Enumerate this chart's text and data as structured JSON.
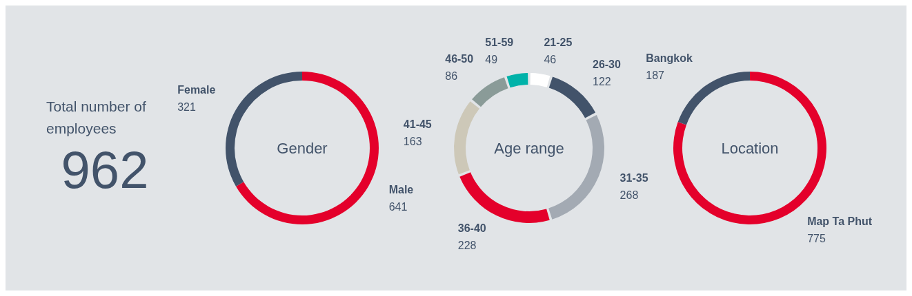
{
  "chart_data": [
    {
      "type": "other",
      "title": "Total number of employees",
      "annotations": [
        "962"
      ]
    },
    {
      "type": "donut",
      "title": "Gender",
      "categories": [
        "Male",
        "Female"
      ],
      "values": [
        641,
        321
      ],
      "colors": [
        "#e4002b",
        "#42536a"
      ],
      "data_labels": true
    },
    {
      "type": "donut",
      "title": "Age range",
      "categories": [
        "21-25",
        "26-30",
        "31-35",
        "36-40",
        "41-45",
        "46-50",
        "51-59"
      ],
      "values": [
        46,
        122,
        268,
        228,
        163,
        86,
        49
      ],
      "colors": [
        "#ffffff",
        "#42536a",
        "#a3aab3",
        "#e4002b",
        "#cdc8b8",
        "#8a9b98",
        "#00b2a9"
      ],
      "data_labels": true
    },
    {
      "type": "donut",
      "title": "Location",
      "categories": [
        "Map Ta Phut",
        "Bangkok"
      ],
      "values": [
        775,
        187
      ],
      "colors": [
        "#e4002b",
        "#42536a"
      ],
      "data_labels": true
    }
  ]
}
